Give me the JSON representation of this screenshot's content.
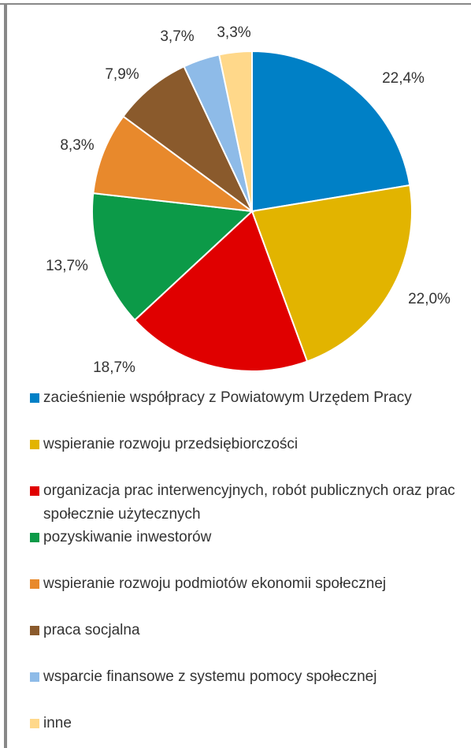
{
  "chart_data": {
    "type": "pie",
    "categories": [
      "zacieśnienie współpracy z Powiatowym Urzędem Pracy",
      "wspieranie rozwoju przedsiębiorczości",
      "organizacja prac interwencyjnych, robót publicznych oraz prac społecznie użytecznych",
      "pozyskiwanie inwestorów",
      "wspieranie rozwoju podmiotów ekonomii społecznej",
      "praca socjalna",
      "wsparcie finansowe z systemu pomocy społecznej",
      "inne"
    ],
    "values": [
      22.4,
      22.0,
      18.7,
      13.7,
      8.3,
      7.9,
      3.7,
      3.3
    ],
    "value_labels": [
      "22,4%",
      "22,0%",
      "18,7%",
      "13,7%",
      "8,3%",
      "7,9%",
      "3,7%",
      "3,3%"
    ],
    "colors": [
      "#0080c6",
      "#e2b400",
      "#e00000",
      "#0c9a48",
      "#e8892c",
      "#8a5a2c",
      "#8ebbe8",
      "#ffd88a"
    ],
    "legend": "bottom"
  }
}
